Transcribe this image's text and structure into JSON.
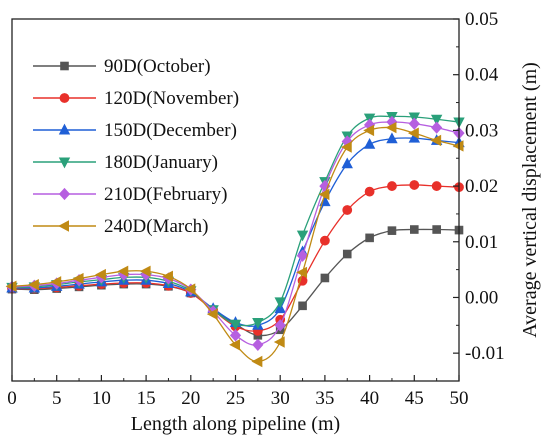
{
  "chart_data": {
    "type": "line",
    "title": "",
    "xlabel": "Length along pipeline (m)",
    "ylabel": "Average vertical displacement (m)",
    "xlim": [
      0,
      50
    ],
    "ylim": [
      -0.015,
      0.05
    ],
    "x_ticks": [
      0,
      5,
      10,
      15,
      20,
      25,
      30,
      35,
      40,
      45,
      50
    ],
    "x_tick_labels": [
      "0",
      "5",
      "10",
      "15",
      "20",
      "25",
      "30",
      "35",
      "40",
      "45",
      "50"
    ],
    "y_ticks": [
      -0.01,
      0.0,
      0.01,
      0.02,
      0.03,
      0.04,
      0.05
    ],
    "y_tick_labels": [
      "-0.01",
      "0.00",
      "0.01",
      "0.02",
      "0.03",
      "0.04",
      "0.05"
    ],
    "y_axis_side": "right",
    "grid": false,
    "legend_position": "top-left",
    "x": [
      0,
      2.5,
      5,
      7.5,
      10,
      12.5,
      15,
      17.5,
      20,
      22.5,
      25,
      27.5,
      30,
      32.5,
      35,
      37.5,
      40,
      42.5,
      45,
      47.5,
      50
    ],
    "series": [
      {
        "name": "90D(October)",
        "color": "#555555",
        "marker": "square",
        "values": [
          0.0015,
          0.0014,
          0.0016,
          0.0019,
          0.0022,
          0.0024,
          0.0024,
          0.002,
          0.0008,
          -0.0022,
          -0.0048,
          -0.0068,
          -0.0058,
          -0.0015,
          0.0035,
          0.0078,
          0.0107,
          0.012,
          0.0122,
          0.0122,
          0.0121
        ]
      },
      {
        "name": "120D(November)",
        "color": "#e8302a",
        "marker": "circle",
        "values": [
          0.0016,
          0.0016,
          0.0018,
          0.0021,
          0.0024,
          0.0026,
          0.0026,
          0.0021,
          0.0008,
          -0.0023,
          -0.0052,
          -0.006,
          -0.004,
          0.003,
          0.0102,
          0.0157,
          0.019,
          0.02,
          0.0202,
          0.02,
          0.0198
        ]
      },
      {
        "name": "150D(December)",
        "color": "#1f5fd6",
        "marker": "triangle-up",
        "values": [
          0.0017,
          0.0017,
          0.002,
          0.0024,
          0.0028,
          0.0031,
          0.0031,
          0.0025,
          0.001,
          -0.002,
          -0.0045,
          -0.005,
          -0.002,
          0.0082,
          0.0172,
          0.024,
          0.0275,
          0.0285,
          0.0286,
          0.0282,
          0.0278
        ]
      },
      {
        "name": "180D(January)",
        "color": "#2aa07a",
        "marker": "triangle-down",
        "values": [
          0.0018,
          0.0019,
          0.0023,
          0.0028,
          0.0032,
          0.0036,
          0.0036,
          0.0029,
          0.0012,
          -0.0022,
          -0.0048,
          -0.0045,
          -0.0008,
          0.0112,
          0.0208,
          0.029,
          0.0322,
          0.0325,
          0.0324,
          0.032,
          0.0315
        ]
      },
      {
        "name": "210D(February)",
        "color": "#b65fe0",
        "marker": "diamond",
        "values": [
          0.0019,
          0.0021,
          0.0025,
          0.0031,
          0.0036,
          0.0041,
          0.0041,
          0.0034,
          0.0014,
          -0.0025,
          -0.0068,
          -0.0085,
          -0.005,
          0.0075,
          0.02,
          0.028,
          0.031,
          0.0315,
          0.0312,
          0.0305,
          0.0295
        ]
      },
      {
        "name": "240D(March)",
        "color": "#c08a14",
        "marker": "triangle-left",
        "values": [
          0.002,
          0.0023,
          0.0028,
          0.0034,
          0.0041,
          0.0047,
          0.0047,
          0.0038,
          0.0015,
          -0.003,
          -0.0085,
          -0.0115,
          -0.008,
          0.0045,
          0.0185,
          0.027,
          0.03,
          0.0305,
          0.0295,
          0.0282,
          0.0272
        ]
      }
    ]
  }
}
